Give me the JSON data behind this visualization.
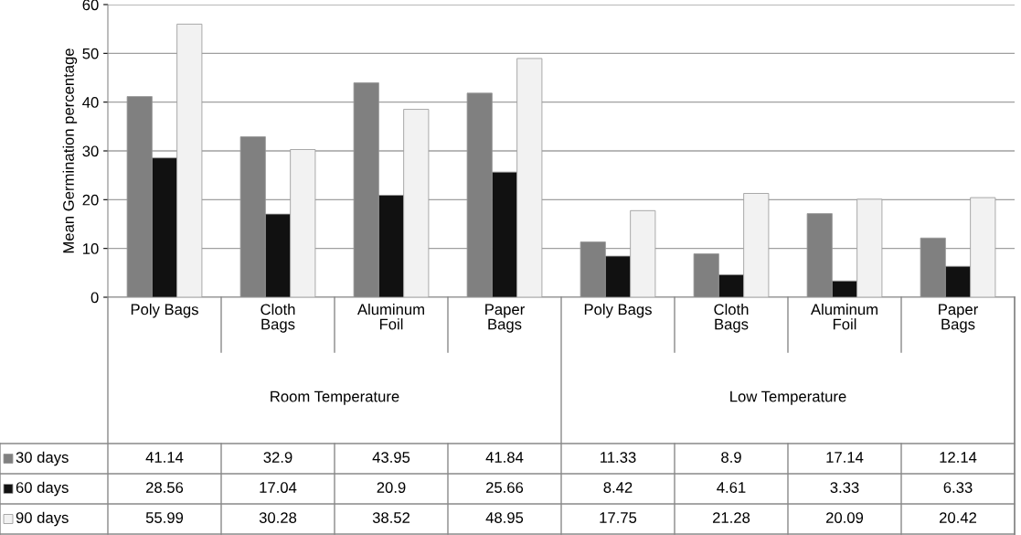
{
  "chart_data": {
    "type": "bar",
    "ylabel": "Mean Germination percentage",
    "categories": [
      "Poly Bags",
      "Cloth\nBags",
      "Aluminum\nFoil",
      "Paper\nBags",
      "Poly Bags",
      "Cloth\nBags",
      "Aluminum\nFoil",
      "Paper\nBags"
    ],
    "series": [
      {
        "name": "30 days",
        "color": "#808080",
        "values": [
          41.14,
          32.9,
          43.95,
          41.84,
          11.33,
          8.9,
          17.14,
          12.14
        ]
      },
      {
        "name": "60 days",
        "color": "#111111",
        "values": [
          28.56,
          17.04,
          20.9,
          25.66,
          8.42,
          4.61,
          3.33,
          6.33
        ]
      },
      {
        "name": "90 days",
        "color": "#f2f2f2",
        "values": [
          55.99,
          30.28,
          38.52,
          48.95,
          17.75,
          21.28,
          20.09,
          20.42
        ]
      }
    ],
    "annotations": [
      "Room Temperature",
      "Low Temperature"
    ],
    "ylim": [
      0,
      60
    ],
    "yticks": [
      0,
      10,
      20,
      30,
      40,
      50,
      60
    ],
    "grid": "y",
    "legend": "bottom",
    "data_labels": true
  }
}
